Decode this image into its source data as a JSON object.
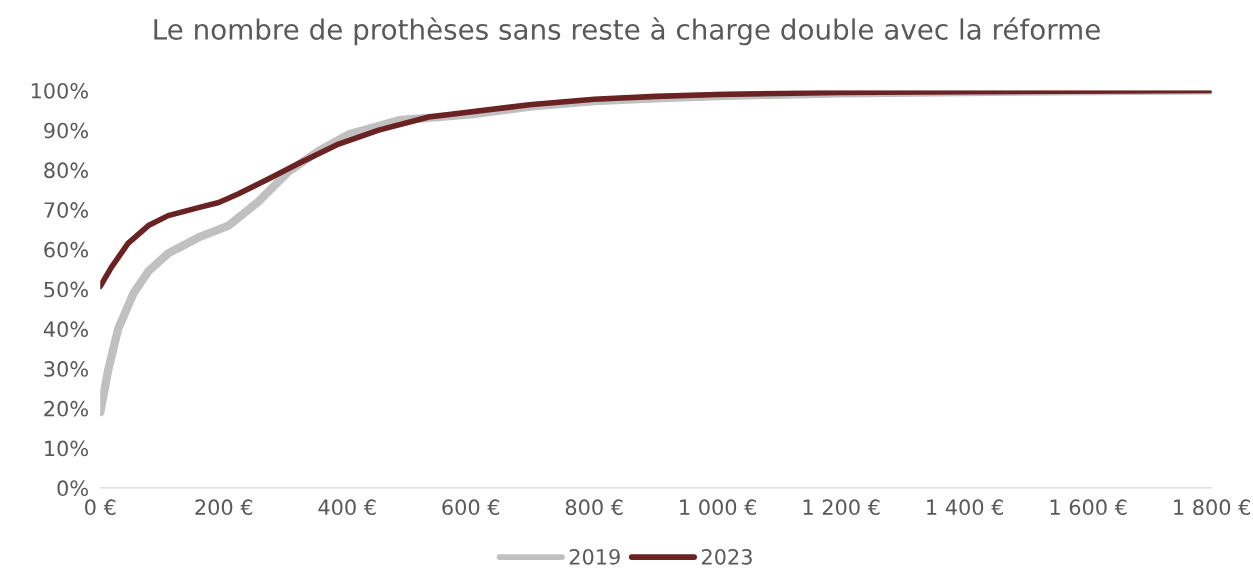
{
  "chart_data": {
    "type": "line",
    "title": "Le nombre de prothèses sans reste à charge double avec la réforme",
    "xlim": [
      0,
      1800
    ],
    "xticks": [
      {
        "value": 0,
        "label": "0 €"
      },
      {
        "value": 200,
        "label": "200 €"
      },
      {
        "value": 400,
        "label": "400 €"
      },
      {
        "value": 600,
        "label": "600 €"
      },
      {
        "value": 800,
        "label": "800 €"
      },
      {
        "value": 1000,
        "label": "1 000 €"
      },
      {
        "value": 1200,
        "label": "1 200 €"
      },
      {
        "value": 1400,
        "label": "1 400 €"
      },
      {
        "value": 1600,
        "label": "1 600 €"
      },
      {
        "value": 1800,
        "label": "1 800 €"
      }
    ],
    "ylim": [
      0,
      100
    ],
    "yticks": [
      {
        "value": 0,
        "label": "0%"
      },
      {
        "value": 10,
        "label": "10%"
      },
      {
        "value": 20,
        "label": "20%"
      },
      {
        "value": 30,
        "label": "30%"
      },
      {
        "value": 40,
        "label": "40%"
      },
      {
        "value": 50,
        "label": "50%"
      },
      {
        "value": 60,
        "label": "60%"
      },
      {
        "value": 70,
        "label": "70%"
      },
      {
        "value": 80,
        "label": "80%"
      },
      {
        "value": 90,
        "label": "90%"
      },
      {
        "value": 100,
        "label": "100%"
      }
    ],
    "grid": false,
    "legend": "bottom",
    "marker": "none",
    "line_style": "solid",
    "series": [
      {
        "name": "2019",
        "color": "#c0c0c0",
        "x": [
          0,
          13,
          29,
          54,
          78,
          110,
          159,
          208,
          256,
          305,
          354,
          403,
          484,
          600,
          700,
          800,
          900,
          1000,
          1200,
          1400,
          1800
        ],
        "values": [
          19,
          29.7,
          40,
          49,
          54.5,
          59,
          63,
          66,
          72,
          79.6,
          84.8,
          89,
          92.5,
          94,
          96,
          97.3,
          98,
          98.6,
          99.3,
          99.6,
          100
        ]
      },
      {
        "name": "2023",
        "color": "#6b2222",
        "x": [
          0,
          18,
          45,
          78,
          110,
          159,
          192,
          224,
          273,
          321,
          386,
          451,
          532,
          695,
          800,
          900,
          1000,
          1200,
          1400,
          1800
        ],
        "values": [
          50.7,
          55.5,
          61.5,
          66,
          68.5,
          70.5,
          71.8,
          74,
          77.8,
          81.6,
          86.5,
          90,
          93.3,
          96.4,
          97.8,
          98.5,
          99,
          99.5,
          99.7,
          100
        ]
      }
    ]
  }
}
